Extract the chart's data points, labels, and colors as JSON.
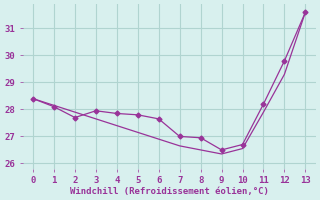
{
  "xlabel": "Windchill (Refroidissement éolien,°C)",
  "x": [
    0,
    1,
    2,
    3,
    4,
    5,
    6,
    7,
    8,
    9,
    10,
    11,
    12,
    13
  ],
  "line1_y": [
    28.4,
    28.1,
    27.7,
    27.95,
    27.85,
    27.8,
    27.65,
    27.0,
    26.95,
    26.5,
    26.7,
    28.2,
    29.8,
    31.6
  ],
  "line2_y": [
    28.4,
    28.15,
    27.9,
    27.65,
    27.4,
    27.15,
    26.9,
    26.65,
    26.5,
    26.35,
    26.55,
    27.9,
    29.3,
    31.6
  ],
  "line_color": "#993399",
  "bg_color": "#d8f0ee",
  "grid_color": "#b0d4d0",
  "ylim": [
    25.8,
    31.9
  ],
  "xlim": [
    -0.5,
    13.5
  ],
  "yticks": [
    26,
    27,
    28,
    29,
    30,
    31
  ],
  "xticks": [
    0,
    1,
    2,
    3,
    4,
    5,
    6,
    7,
    8,
    9,
    10,
    11,
    12,
    13
  ],
  "tick_label_color": "#993399",
  "xlabel_color": "#993399"
}
